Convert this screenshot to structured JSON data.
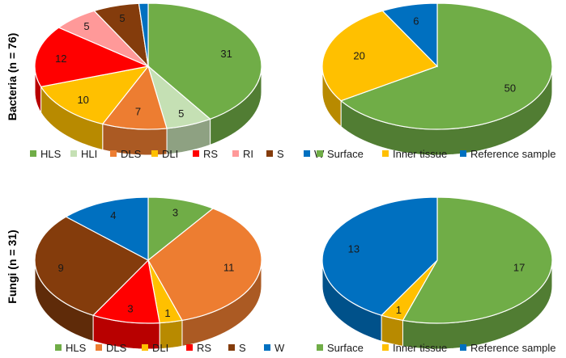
{
  "row_labels": [
    "Bacteria (n = 76)",
    "Fungi (n = 31)"
  ],
  "colors": {
    "HLS": "#70ad47",
    "HLI": "#c5e0b4",
    "DLS": "#ed7d31",
    "DLI": "#ffc000",
    "RS": "#ff0000",
    "RI": "#ff9999",
    "S": "#843c0c",
    "W": "#0070c0",
    "Surface": "#70ad47",
    "Inner tissue": "#ffc000",
    "Reference sample": "#0070c0"
  },
  "chart_data": [
    {
      "type": "pie",
      "style": "3d",
      "row": "Bacteria (n = 76)",
      "categories": [
        "HLS",
        "HLI",
        "DLS",
        "DLI",
        "RS",
        "RI",
        "S",
        "W"
      ],
      "values": [
        31,
        5,
        7,
        10,
        12,
        5,
        5,
        1
      ],
      "data_labels": [
        "31",
        "5",
        "7",
        "10",
        "12",
        "5",
        "5",
        ""
      ],
      "legend": [
        "HLS",
        "HLI",
        "DLS",
        "DLI",
        "RS",
        "RI",
        "S",
        "W"
      ],
      "legend_position": "bottom"
    },
    {
      "type": "pie",
      "style": "3d",
      "row": "Bacteria (n = 76)",
      "categories": [
        "Surface",
        "Inner tissue",
        "Reference sample"
      ],
      "values": [
        50,
        20,
        6
      ],
      "data_labels": [
        "50",
        "20",
        "6"
      ],
      "legend": [
        "Surface",
        "Inner tissue",
        "Reference sample"
      ],
      "legend_position": "bottom"
    },
    {
      "type": "pie",
      "style": "3d",
      "row": "Fungi (n = 31)",
      "categories": [
        "HLS",
        "DLS",
        "DLI",
        "RS",
        "S",
        "W"
      ],
      "values": [
        3,
        11,
        1,
        3,
        9,
        4
      ],
      "data_labels": [
        "3",
        "11",
        "1",
        "3",
        "9",
        "4"
      ],
      "legend": [
        "HLS",
        "DLS",
        "DLI",
        "RS",
        "S",
        "W"
      ],
      "legend_position": "bottom"
    },
    {
      "type": "pie",
      "style": "3d",
      "row": "Fungi (n = 31)",
      "categories": [
        "Surface",
        "Inner tissue",
        "Reference sample"
      ],
      "values": [
        17,
        1,
        13
      ],
      "data_labels": [
        "17",
        "1",
        "13"
      ],
      "legend": [
        "Surface",
        "Inner tissue",
        "Reference sample"
      ],
      "legend_position": "bottom"
    }
  ]
}
